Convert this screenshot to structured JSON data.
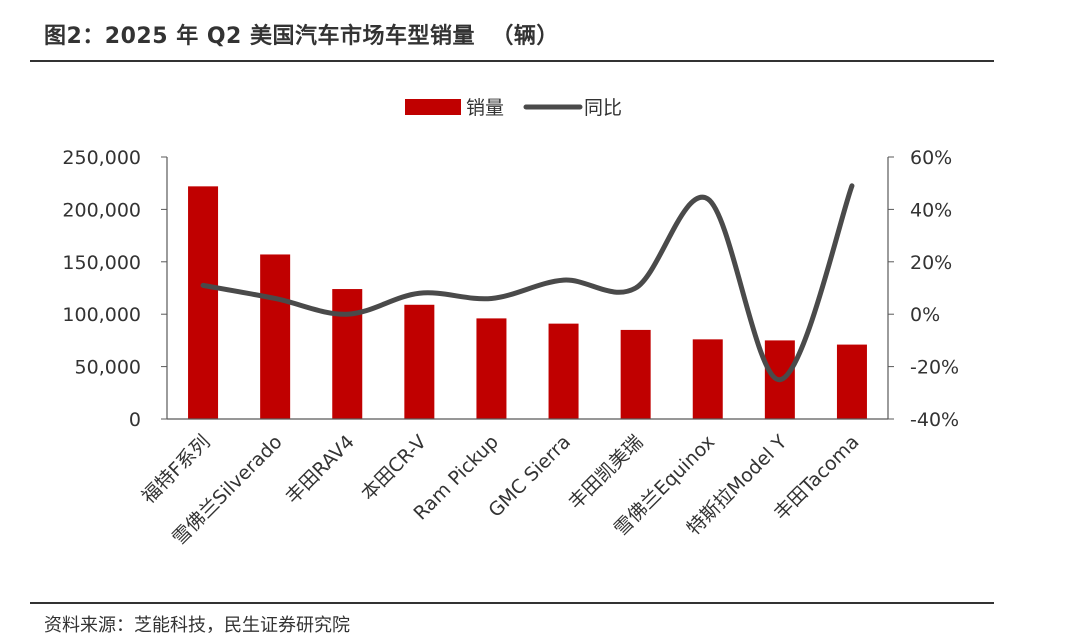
{
  "figure_title": "图2：2025 年 Q2 美国汽车市场车型销量  （辆）",
  "source": "资料来源：芝能科技，民生证券研究院",
  "colors": {
    "bar": "#c00000",
    "line": "#4a4a4a",
    "axis": "#595959"
  },
  "chart_data": {
    "type": "bar",
    "categories": [
      "福特F系列",
      "雪佛兰Silverado",
      "丰田RAV4",
      "本田CR-V",
      "Ram Pickup",
      "GMC Sierra",
      "丰田凯美瑞",
      "雪佛兰Equinox",
      "特斯拉Model Y",
      "丰田Tacoma"
    ],
    "series": [
      {
        "name": "销量",
        "type": "bar",
        "axis": "left",
        "values": [
          222000,
          157000,
          124000,
          109000,
          96000,
          91000,
          85000,
          76000,
          75000,
          71000
        ]
      },
      {
        "name": "同比",
        "type": "line",
        "axis": "right",
        "smooth": true,
        "values": [
          11,
          6,
          0,
          8,
          6,
          13,
          10,
          44,
          -25,
          49
        ]
      }
    ],
    "left_axis": {
      "min": 0,
      "max": 250000,
      "ticks": [
        "0",
        "50,000",
        "100,000",
        "150,000",
        "200,000",
        "250,000"
      ]
    },
    "right_axis": {
      "min": -40,
      "max": 60,
      "ticks": [
        "-40%",
        "-20%",
        "0%",
        "20%",
        "40%",
        "60%"
      ]
    },
    "legend_position": "top-center",
    "grid": false
  }
}
